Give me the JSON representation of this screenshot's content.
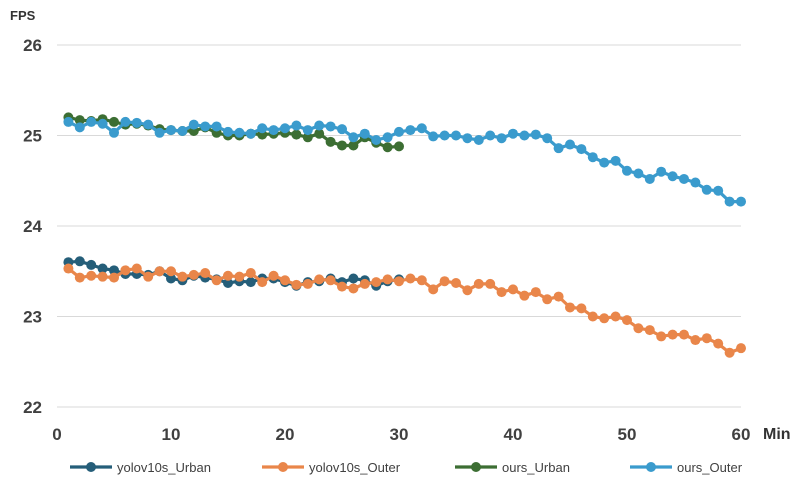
{
  "chart_data": {
    "type": "line",
    "xlabel": "Min",
    "ylabel": "FPS",
    "xlim": [
      0,
      60
    ],
    "ylim": [
      22,
      26
    ],
    "x_ticks": [
      0,
      10,
      20,
      30,
      40,
      50,
      60
    ],
    "y_ticks": [
      22,
      23,
      24,
      25,
      26
    ],
    "grid": "horizontal",
    "legend_position": "bottom",
    "series": [
      {
        "name": "yolov10s_Urban",
        "color": "#255E79",
        "x": [
          1,
          2,
          3,
          4,
          5,
          6,
          7,
          8,
          9,
          10,
          11,
          12,
          13,
          14,
          15,
          16,
          17,
          18,
          19,
          20,
          21,
          22,
          23,
          24,
          25,
          26,
          27,
          28,
          29,
          30
        ],
        "values": [
          23.6,
          23.61,
          23.57,
          23.53,
          23.51,
          23.47,
          23.47,
          23.46,
          23.5,
          23.42,
          23.4,
          23.45,
          23.43,
          23.41,
          23.37,
          23.39,
          23.38,
          23.42,
          23.42,
          23.38,
          23.34,
          23.38,
          23.39,
          23.42,
          23.38,
          23.42,
          23.4,
          23.34,
          23.39,
          23.41
        ]
      },
      {
        "name": "yolov10s_Outer",
        "color": "#E9864A",
        "x": [
          1,
          2,
          3,
          4,
          5,
          6,
          7,
          8,
          9,
          10,
          11,
          12,
          13,
          14,
          15,
          16,
          17,
          18,
          19,
          20,
          21,
          22,
          23,
          24,
          25,
          26,
          27,
          28,
          29,
          30,
          31,
          32,
          33,
          34,
          35,
          36,
          37,
          38,
          39,
          40,
          41,
          42,
          43,
          44,
          45,
          46,
          47,
          48,
          49,
          50,
          51,
          52,
          53,
          54,
          55,
          56,
          57,
          58,
          59,
          60
        ],
        "values": [
          23.53,
          23.43,
          23.45,
          23.44,
          23.43,
          23.51,
          23.53,
          23.44,
          23.5,
          23.5,
          23.44,
          23.46,
          23.48,
          23.4,
          23.45,
          23.44,
          23.48,
          23.38,
          23.45,
          23.4,
          23.35,
          23.36,
          23.41,
          23.4,
          23.33,
          23.31,
          23.36,
          23.38,
          23.41,
          23.39,
          23.42,
          23.4,
          23.3,
          23.39,
          23.37,
          23.29,
          23.36,
          23.36,
          23.27,
          23.3,
          23.23,
          23.27,
          23.19,
          23.22,
          23.1,
          23.09,
          23.0,
          22.98,
          23.0,
          22.96,
          22.87,
          22.85,
          22.78,
          22.8,
          22.8,
          22.74,
          22.76,
          22.7,
          22.6,
          22.65
        ]
      },
      {
        "name": "ours_Urban",
        "color": "#3C6E33",
        "x": [
          1,
          2,
          3,
          4,
          5,
          6,
          7,
          8,
          9,
          10,
          11,
          12,
          13,
          14,
          15,
          16,
          17,
          18,
          19,
          20,
          21,
          22,
          23,
          24,
          25,
          26,
          27,
          28,
          29,
          30
        ],
        "values": [
          25.2,
          25.17,
          25.16,
          25.18,
          25.15,
          25.12,
          25.13,
          25.11,
          25.07,
          25.06,
          25.05,
          25.05,
          25.09,
          25.03,
          25.0,
          25.0,
          25.02,
          25.01,
          25.02,
          25.03,
          25.01,
          24.98,
          25.02,
          24.93,
          24.89,
          24.89,
          24.98,
          24.92,
          24.87,
          24.88
        ]
      },
      {
        "name": "ours_Outer",
        "color": "#3A9BCD",
        "x": [
          1,
          2,
          3,
          4,
          5,
          6,
          7,
          8,
          9,
          10,
          11,
          12,
          13,
          14,
          15,
          16,
          17,
          18,
          19,
          20,
          21,
          22,
          23,
          24,
          25,
          26,
          27,
          28,
          29,
          30,
          31,
          32,
          33,
          34,
          35,
          36,
          37,
          38,
          39,
          40,
          41,
          42,
          43,
          44,
          45,
          46,
          47,
          48,
          49,
          50,
          51,
          52,
          53,
          54,
          55,
          56,
          57,
          58,
          59,
          60
        ],
        "values": [
          25.15,
          25.09,
          25.15,
          25.13,
          25.03,
          25.15,
          25.14,
          25.12,
          25.03,
          25.06,
          25.05,
          25.12,
          25.1,
          25.1,
          25.04,
          25.03,
          25.02,
          25.08,
          25.06,
          25.08,
          25.11,
          25.06,
          25.11,
          25.1,
          25.07,
          24.98,
          25.02,
          24.95,
          24.98,
          25.04,
          25.06,
          25.08,
          24.99,
          25.0,
          25.0,
          24.97,
          24.95,
          25.0,
          24.97,
          25.02,
          25.0,
          25.01,
          24.97,
          24.86,
          24.9,
          24.85,
          24.76,
          24.7,
          24.72,
          24.61,
          24.58,
          24.52,
          24.6,
          24.55,
          24.52,
          24.48,
          24.4,
          24.39,
          24.27,
          24.27
        ]
      }
    ]
  }
}
